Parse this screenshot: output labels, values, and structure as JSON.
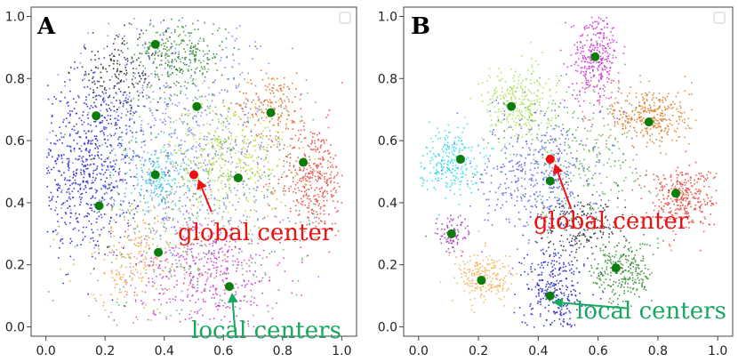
{
  "chart_data": [
    {
      "type": "scatter",
      "panel": "A",
      "xlim": [
        -0.05,
        1.05
      ],
      "ylim": [
        -0.03,
        1.03
      ],
      "xticks": [
        "0.0",
        "0.2",
        "0.4",
        "0.6",
        "0.8",
        "1.0"
      ],
      "yticks": [
        "0.0",
        "0.2",
        "0.4",
        "0.6",
        "0.8",
        "1.0"
      ],
      "global_center": {
        "x": 0.5,
        "y": 0.49
      },
      "local_centers": [
        {
          "x": 0.37,
          "y": 0.91
        },
        {
          "x": 0.17,
          "y": 0.68
        },
        {
          "x": 0.51,
          "y": 0.71
        },
        {
          "x": 0.76,
          "y": 0.69
        },
        {
          "x": 0.87,
          "y": 0.53
        },
        {
          "x": 0.37,
          "y": 0.49
        },
        {
          "x": 0.65,
          "y": 0.48
        },
        {
          "x": 0.18,
          "y": 0.39
        },
        {
          "x": 0.38,
          "y": 0.24
        },
        {
          "x": 0.62,
          "y": 0.13
        }
      ],
      "global_label": "global center",
      "local_label": "local centers",
      "global_arrow_from": {
        "x": 0.56,
        "y": 0.37
      },
      "local_arrow_from": {
        "x": 0.64,
        "y": -0.02
      },
      "clusters": [
        {
          "color": "#1f1fcf",
          "cx": 0.14,
          "cy": 0.52,
          "sx": 0.09,
          "sy": 0.15,
          "n": 700
        },
        {
          "color": "#e8483a",
          "cx": 0.9,
          "cy": 0.48,
          "sx": 0.06,
          "sy": 0.09,
          "n": 380
        },
        {
          "color": "#e06a1f",
          "cx": 0.76,
          "cy": 0.72,
          "sx": 0.06,
          "sy": 0.05,
          "n": 160
        },
        {
          "color": "#2a8a2a",
          "cx": 0.45,
          "cy": 0.88,
          "sx": 0.08,
          "sy": 0.06,
          "n": 280
        },
        {
          "color": "#b9d82f",
          "cx": 0.62,
          "cy": 0.55,
          "sx": 0.1,
          "sy": 0.1,
          "n": 380
        },
        {
          "color": "#cc33cc",
          "cx": 0.55,
          "cy": 0.18,
          "sx": 0.12,
          "sy": 0.09,
          "n": 420
        },
        {
          "color": "#2fd8e8",
          "cx": 0.38,
          "cy": 0.48,
          "sx": 0.05,
          "sy": 0.05,
          "n": 160
        },
        {
          "color": "#f0a040",
          "cx": 0.3,
          "cy": 0.22,
          "sx": 0.1,
          "sy": 0.08,
          "n": 230
        },
        {
          "color": "#222222",
          "cx": 0.25,
          "cy": 0.82,
          "sx": 0.08,
          "sy": 0.06,
          "n": 180
        },
        {
          "color": "#7a7aff",
          "cx": 0.45,
          "cy": 0.58,
          "sx": 0.18,
          "sy": 0.2,
          "n": 700
        },
        {
          "color": "#5ab05a",
          "cx": 0.5,
          "cy": 0.4,
          "sx": 0.2,
          "sy": 0.2,
          "n": 500
        }
      ]
    },
    {
      "type": "scatter",
      "panel": "B",
      "xlim": [
        -0.05,
        1.05
      ],
      "ylim": [
        -0.03,
        1.03
      ],
      "xticks": [
        "0.0",
        "0.2",
        "0.4",
        "0.6",
        "0.8",
        "1.0"
      ],
      "yticks": [
        "0.0",
        "0.2",
        "0.4",
        "0.6",
        "0.8",
        "1.0"
      ],
      "global_center": {
        "x": 0.44,
        "y": 0.54
      },
      "local_centers": [
        {
          "x": 0.59,
          "y": 0.87
        },
        {
          "x": 0.31,
          "y": 0.71
        },
        {
          "x": 0.77,
          "y": 0.66
        },
        {
          "x": 0.14,
          "y": 0.54
        },
        {
          "x": 0.44,
          "y": 0.47
        },
        {
          "x": 0.86,
          "y": 0.43
        },
        {
          "x": 0.11,
          "y": 0.3
        },
        {
          "x": 0.66,
          "y": 0.19
        },
        {
          "x": 0.21,
          "y": 0.15
        },
        {
          "x": 0.44,
          "y": 0.1
        }
      ],
      "global_label": "global center",
      "local_label": "local centers",
      "global_arrow_from": {
        "x": 0.51,
        "y": 0.38
      },
      "local_arrow_from": {
        "x": 0.7,
        "y": 0.06
      },
      "clusters": [
        {
          "color": "#cc33cc",
          "cx": 0.59,
          "cy": 0.87,
          "sx": 0.04,
          "sy": 0.07,
          "n": 330
        },
        {
          "color": "#a8e050",
          "cx": 0.33,
          "cy": 0.72,
          "sx": 0.06,
          "sy": 0.06,
          "n": 300
        },
        {
          "color": "#e07820",
          "cx": 0.77,
          "cy": 0.68,
          "sx": 0.07,
          "sy": 0.05,
          "n": 330
        },
        {
          "color": "#2fd8e8",
          "cx": 0.1,
          "cy": 0.54,
          "sx": 0.05,
          "sy": 0.05,
          "n": 260
        },
        {
          "color": "#e8483a",
          "cx": 0.88,
          "cy": 0.42,
          "sx": 0.06,
          "sy": 0.05,
          "n": 340
        },
        {
          "color": "#9933aa",
          "cx": 0.11,
          "cy": 0.3,
          "sx": 0.03,
          "sy": 0.03,
          "n": 90
        },
        {
          "color": "#2a8a2a",
          "cx": 0.68,
          "cy": 0.18,
          "sx": 0.05,
          "sy": 0.05,
          "n": 260
        },
        {
          "color": "#f0b050",
          "cx": 0.22,
          "cy": 0.16,
          "sx": 0.05,
          "sy": 0.04,
          "n": 220
        },
        {
          "color": "#1f1fcf",
          "cx": 0.45,
          "cy": 0.12,
          "sx": 0.05,
          "sy": 0.08,
          "n": 330
        },
        {
          "color": "#222222",
          "cx": 0.55,
          "cy": 0.32,
          "sx": 0.07,
          "sy": 0.05,
          "n": 180
        },
        {
          "color": "#5a5aee",
          "cx": 0.4,
          "cy": 0.5,
          "sx": 0.1,
          "sy": 0.1,
          "n": 420
        },
        {
          "color": "#5ab05a",
          "cx": 0.55,
          "cy": 0.55,
          "sx": 0.12,
          "sy": 0.12,
          "n": 300
        }
      ]
    }
  ]
}
